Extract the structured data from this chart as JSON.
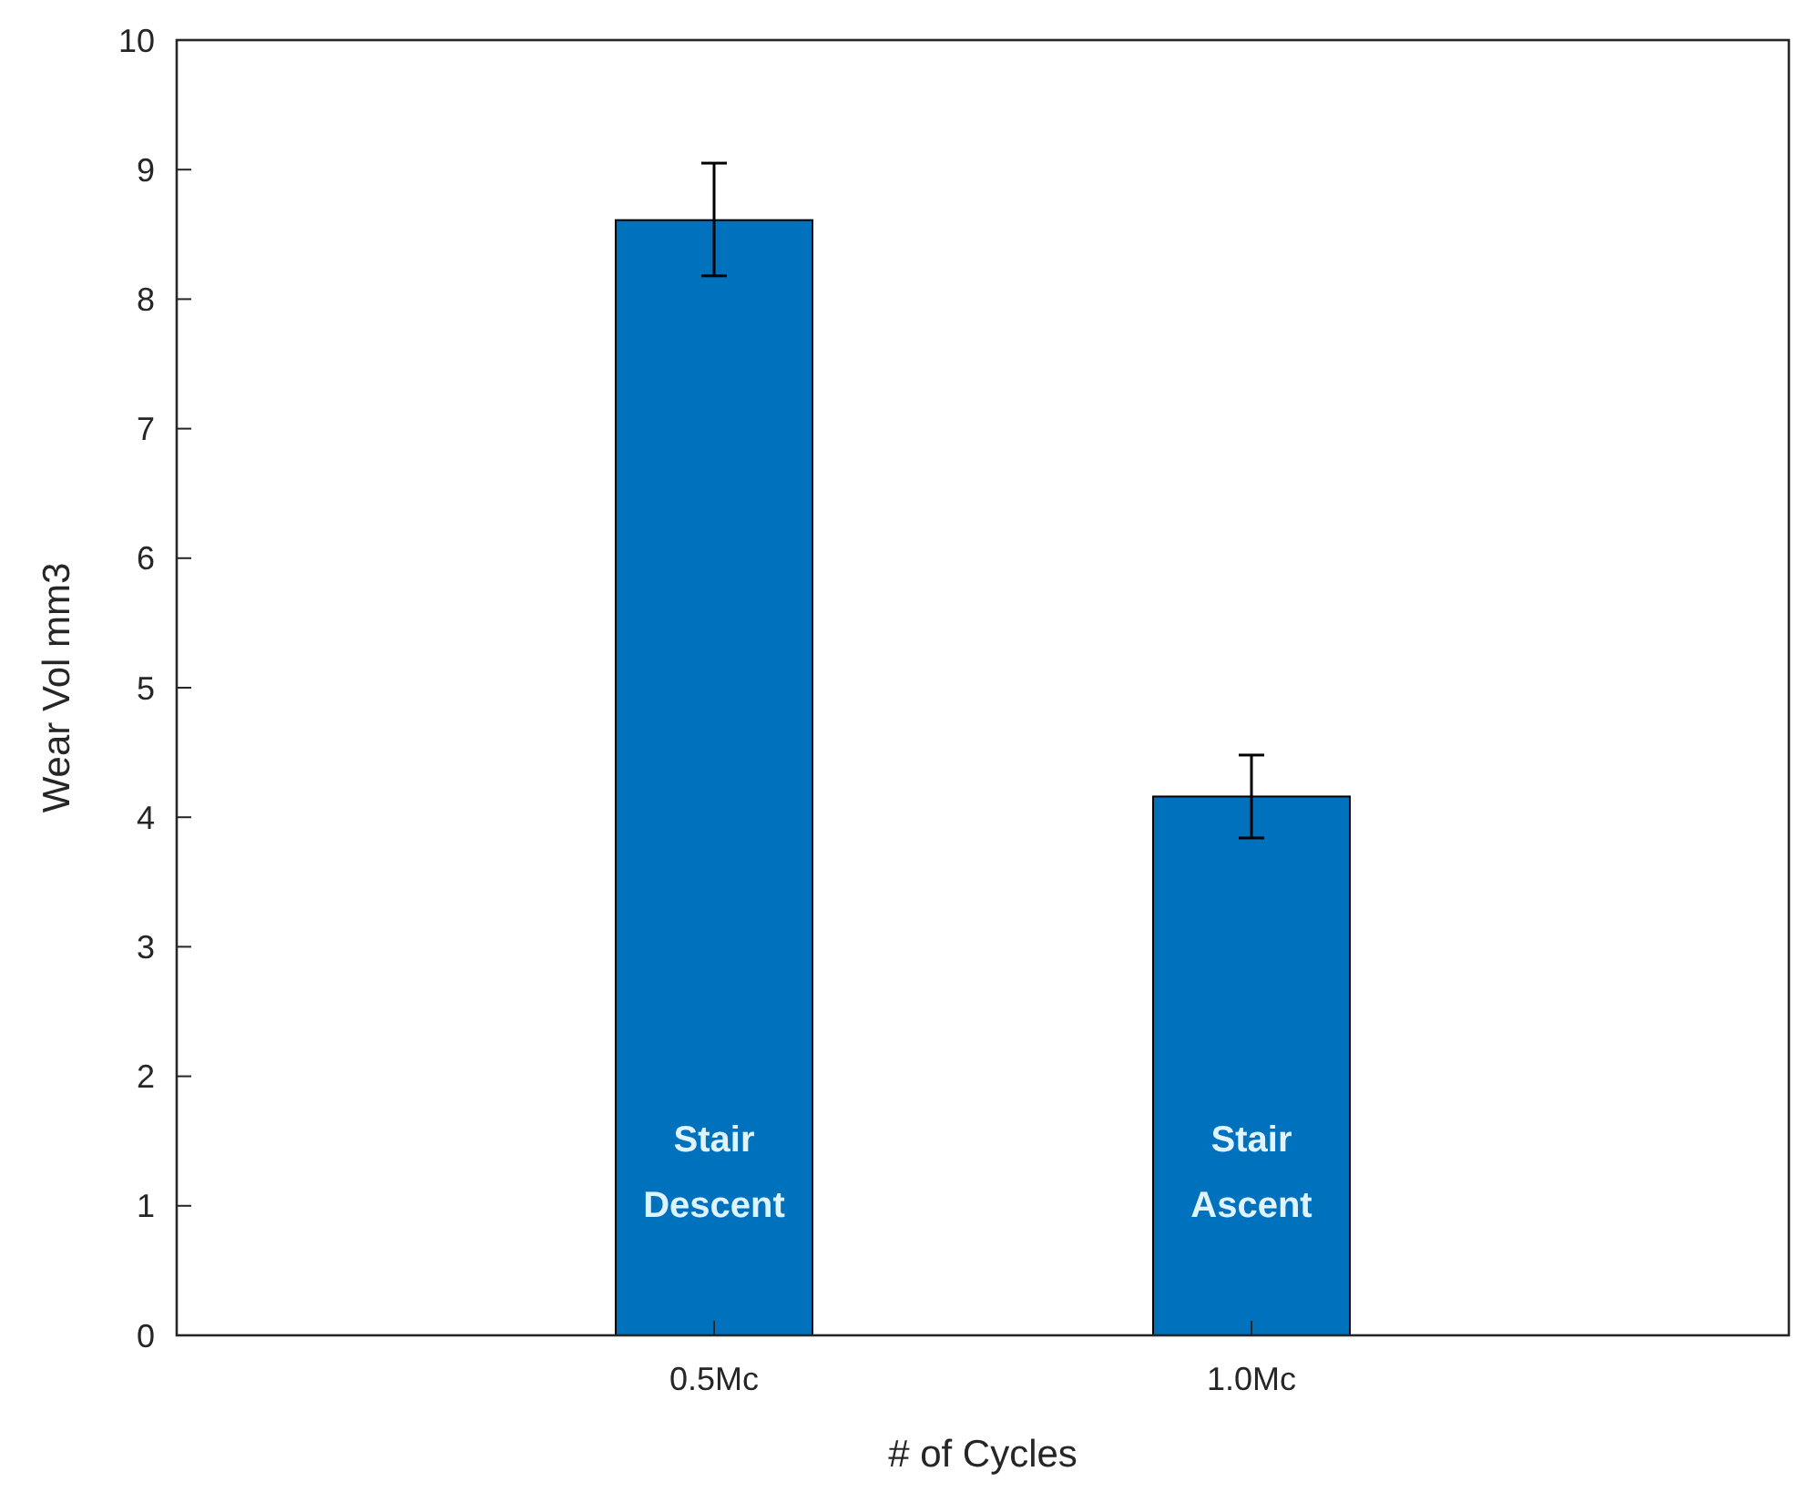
{
  "chart_data": {
    "type": "bar",
    "xlabel": "# of Cycles",
    "ylabel": "Wear Vol mm3",
    "categories": [
      "0.5Mc",
      "1.0Mc"
    ],
    "values": [
      8.61,
      4.16
    ],
    "errors": [
      [
        8.18,
        9.05
      ],
      [
        3.84,
        4.48
      ]
    ],
    "color": "#0072bd",
    "ylim": [
      0,
      10
    ],
    "yticks": [
      0,
      1,
      2,
      3,
      4,
      5,
      6,
      7,
      8,
      9,
      10
    ],
    "grid": false,
    "annotations": [
      "Stair Descent",
      "Stair Ascent"
    ]
  }
}
